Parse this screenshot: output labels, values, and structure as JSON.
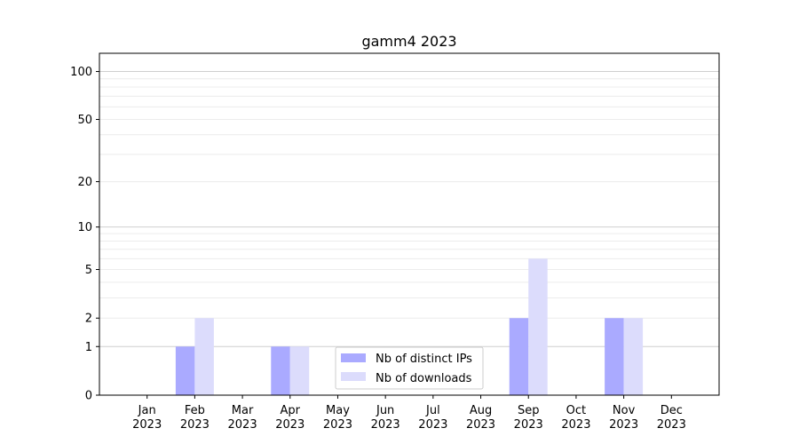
{
  "chart_data": {
    "type": "bar",
    "title": "gamm4 2023",
    "categories": [
      "Jan\n2023",
      "Feb\n2023",
      "Mar\n2023",
      "Apr\n2023",
      "May\n2023",
      "Jun\n2023",
      "Jul\n2023",
      "Aug\n2023",
      "Sep\n2023",
      "Oct\n2023",
      "Nov\n2023",
      "Dec\n2023"
    ],
    "series": [
      {
        "name": "Nb of distinct IPs",
        "values": [
          0,
          1,
          0,
          1,
          0,
          0,
          0,
          0,
          2,
          0,
          2,
          0
        ],
        "color": "#aaaaff"
      },
      {
        "name": "Nb of downloads",
        "values": [
          0,
          2,
          0,
          1,
          0,
          0,
          0,
          0,
          6,
          0,
          2,
          0
        ],
        "color": "#dcdcfc"
      }
    ],
    "y_scale": "log(1+y)",
    "y_ticks": [
      0,
      1,
      2,
      5,
      10,
      20,
      50,
      100
    ],
    "ylim": [
      0,
      130
    ],
    "xlabel": "",
    "ylabel": "",
    "grid": true,
    "legend_position": "lower-center"
  }
}
